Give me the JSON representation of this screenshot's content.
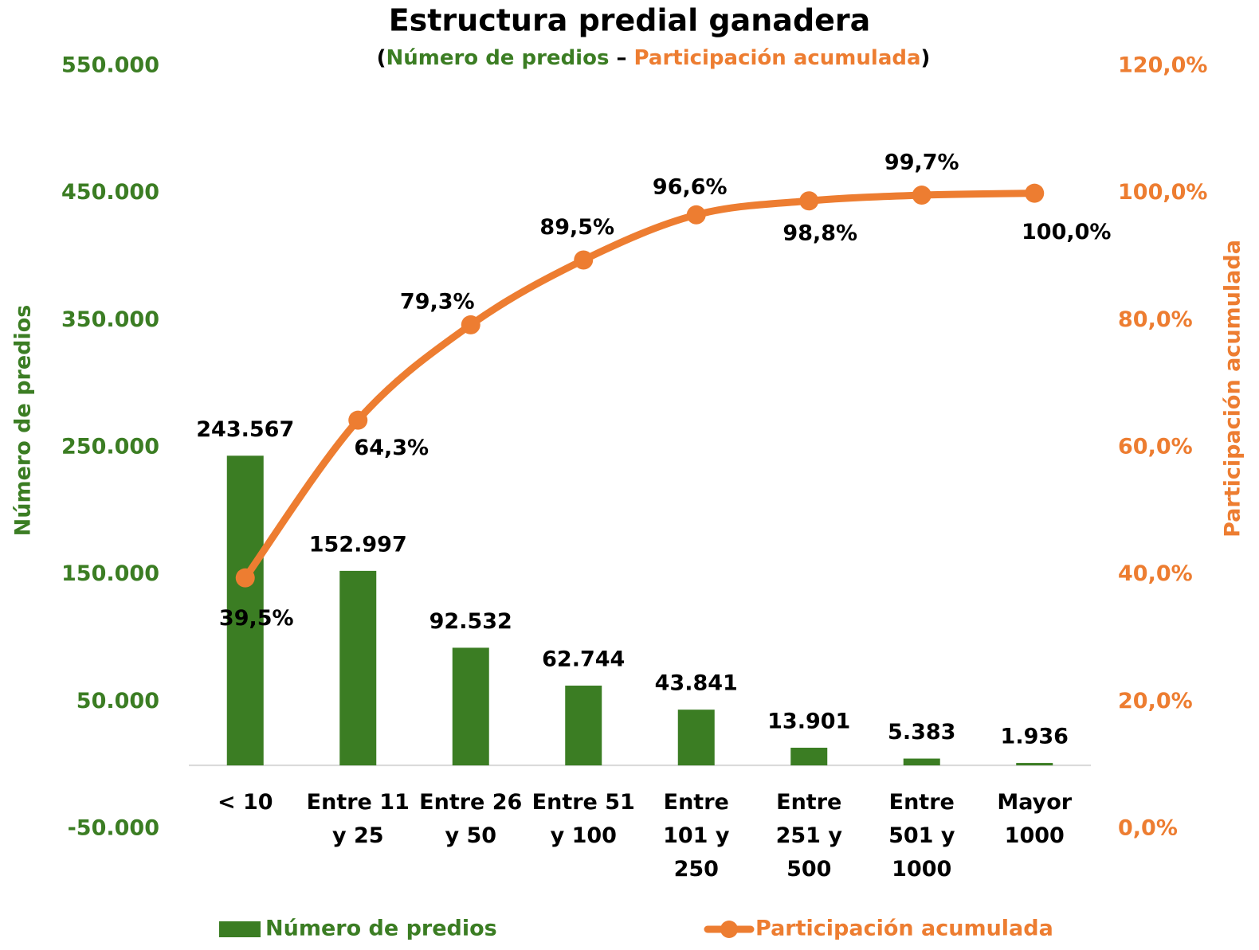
{
  "chart_data": {
    "type": "bar-line",
    "title": "Estructura predial ganadera",
    "subtitle": [
      "(",
      "Número de predios",
      " – ",
      "Participación acumulada",
      ")"
    ],
    "y_label": "Número de predios",
    "y2_label": "Participación acumulada",
    "categories": [
      "< 10",
      "Entre 11 y 25",
      "Entre 26 y 50",
      "Entre 51 y 100",
      "Entre 101 y 250",
      "Entre 251 y 500",
      "Entre 501 y 1000",
      "Mayor 1000"
    ],
    "series": [
      {
        "name": "Número de predios",
        "type": "bar",
        "color": "#3b7d23",
        "values": [
          243567,
          152997,
          92532,
          62744,
          43841,
          13901,
          5383,
          1936
        ],
        "value_labels": [
          "243.567",
          "152.997",
          "92.532",
          "62.744",
          "43.841",
          "13.901",
          "5.383",
          "1.936"
        ]
      },
      {
        "name": "Participación acumulada",
        "type": "line",
        "axis": "y2",
        "color": "#ed7d31",
        "values": [
          39.5,
          64.3,
          79.3,
          89.5,
          96.6,
          98.8,
          99.7,
          100.0
        ],
        "value_labels": [
          "39,5%",
          "64,3%",
          "79,3%",
          "89,5%",
          "96,6%",
          "98,8%",
          "99,7%",
          "100,0%"
        ]
      }
    ],
    "ylim": [
      -50000,
      550000
    ],
    "yticks": [
      {
        "value": -50000,
        "label": "-50.000"
      },
      {
        "value": 50000,
        "label": "50.000"
      },
      {
        "value": 150000,
        "label": "150.000"
      },
      {
        "value": 250000,
        "label": "250.000"
      },
      {
        "value": 350000,
        "label": "350.000"
      },
      {
        "value": 450000,
        "label": "450.000"
      },
      {
        "value": 550000,
        "label": "550.000"
      }
    ],
    "y2lim": [
      0,
      120
    ],
    "y2ticks": [
      {
        "value": 0,
        "label": "0,0%"
      },
      {
        "value": 20,
        "label": "20,0%"
      },
      {
        "value": 40,
        "label": "40,0%"
      },
      {
        "value": 60,
        "label": "60,0%"
      },
      {
        "value": 80,
        "label": "80,0%"
      },
      {
        "value": 100,
        "label": "100,0%"
      },
      {
        "value": 120,
        "label": "120,0%"
      }
    ],
    "grid": false,
    "legend": "bottom"
  }
}
